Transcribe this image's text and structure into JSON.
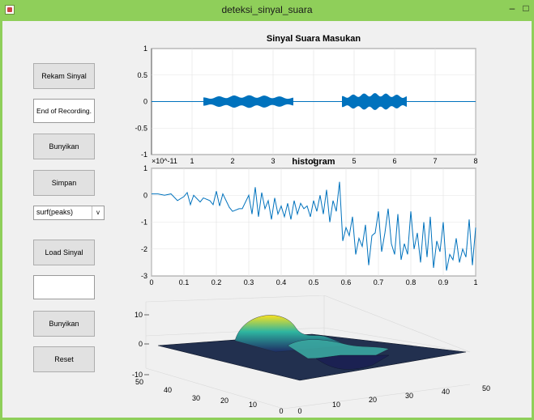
{
  "window": {
    "title": "deteksi_sinyal_suara",
    "minimize_glyph": "–",
    "maximize_glyph": "□"
  },
  "controls": {
    "rekam": "Rekam Sinyal",
    "status": "End of Recording.",
    "bunyikan1": "Bunyikan",
    "simpan": "Simpan",
    "dropdown_value": "surf(peaks)",
    "dropdown_arrow": "v",
    "load": "Load Sinyal",
    "loaded_name": "",
    "bunyikan2": "Bunyikan",
    "reset": "Reset"
  },
  "colors": {
    "line": "#0072bd",
    "titlebar": "#8fcf5a"
  },
  "chart_data": [
    {
      "type": "line",
      "title": "Sinyal Suara Masukan",
      "xlim": [
        0,
        8
      ],
      "ylim": [
        -1,
        1
      ],
      "xticks": [
        "1",
        "2",
        "3",
        "4",
        "5",
        "6",
        "7",
        "8"
      ],
      "yticks": [
        "1",
        "0.5",
        "0",
        "-0.5",
        "-1"
      ],
      "grid": true,
      "segments": [
        {
          "x_start": 1.28,
          "x_end": 3.5,
          "amplitude": 0.12
        },
        {
          "x_start": 4.7,
          "x_end": 6.3,
          "amplitude": 0.16
        }
      ]
    },
    {
      "type": "line",
      "title": "histogram",
      "scale_label": "×10^-11",
      "xlim": [
        0,
        1
      ],
      "ylim": [
        -3,
        1
      ],
      "xticks": [
        "0",
        "0.1",
        "0.2",
        "0.3",
        "0.4",
        "0.5",
        "0.6",
        "0.7",
        "0.8",
        "0.9",
        "1"
      ],
      "yticks": [
        "1",
        "0",
        "-1",
        "-2",
        "-3"
      ],
      "grid": true,
      "x": [
        0,
        0.02,
        0.04,
        0.06,
        0.08,
        0.1,
        0.11,
        0.12,
        0.13,
        0.15,
        0.16,
        0.18,
        0.19,
        0.2,
        0.21,
        0.22,
        0.24,
        0.25,
        0.27,
        0.28,
        0.3,
        0.31,
        0.32,
        0.33,
        0.34,
        0.35,
        0.36,
        0.37,
        0.38,
        0.39,
        0.4,
        0.41,
        0.42,
        0.43,
        0.44,
        0.45,
        0.46,
        0.47,
        0.48,
        0.49,
        0.5,
        0.51,
        0.52,
        0.53,
        0.54,
        0.55,
        0.56,
        0.57,
        0.58,
        0.59,
        0.6,
        0.61,
        0.62,
        0.63,
        0.64,
        0.65,
        0.66,
        0.67,
        0.68,
        0.69,
        0.7,
        0.71,
        0.72,
        0.73,
        0.74,
        0.75,
        0.76,
        0.77,
        0.78,
        0.79,
        0.8,
        0.81,
        0.82,
        0.83,
        0.84,
        0.85,
        0.86,
        0.87,
        0.88,
        0.89,
        0.9,
        0.91,
        0.92,
        0.93,
        0.94,
        0.95,
        0.96,
        0.97,
        0.98,
        0.99,
        1.0
      ],
      "y": [
        0.05,
        0.05,
        0.0,
        0.05,
        -0.2,
        -0.05,
        0.1,
        -0.35,
        0.0,
        -0.25,
        -0.1,
        -0.2,
        -0.35,
        0.15,
        -0.4,
        0.05,
        -0.45,
        -0.6,
        -0.5,
        -0.5,
        0.0,
        -0.7,
        0.3,
        -0.8,
        0.1,
        -0.5,
        -0.2,
        -0.9,
        -0.1,
        -0.7,
        -0.4,
        -0.8,
        -0.3,
        -0.9,
        -0.2,
        -0.7,
        -0.3,
        -0.5,
        -0.4,
        -0.8,
        -0.2,
        -0.6,
        0.0,
        -0.7,
        0.2,
        -1.0,
        -0.2,
        -0.6,
        0.5,
        -1.7,
        -1.2,
        -1.5,
        -0.8,
        -2.2,
        -1.6,
        -1.9,
        -1.1,
        -2.6,
        -1.5,
        -1.4,
        -0.6,
        -2.1,
        -1.4,
        -0.5,
        -1.8,
        -2.2,
        -0.7,
        -2.4,
        -1.8,
        -2.2,
        -0.6,
        -2.0,
        -1.4,
        -2.5,
        -1.0,
        -2.3,
        -0.8,
        -2.7,
        -1.7,
        -2.1,
        -1.0,
        -2.8,
        -2.2,
        -2.4,
        -1.6,
        -2.5,
        -2.0,
        -2.3,
        -0.9,
        -2.6,
        -1.2
      ]
    },
    {
      "type": "surface",
      "zticks": [
        "10",
        "0",
        "-10"
      ],
      "yticks": [
        "50",
        "40",
        "30",
        "20",
        "10",
        "0"
      ],
      "xticks": [
        "0",
        "10",
        "20",
        "30",
        "40",
        "50"
      ]
    }
  ]
}
